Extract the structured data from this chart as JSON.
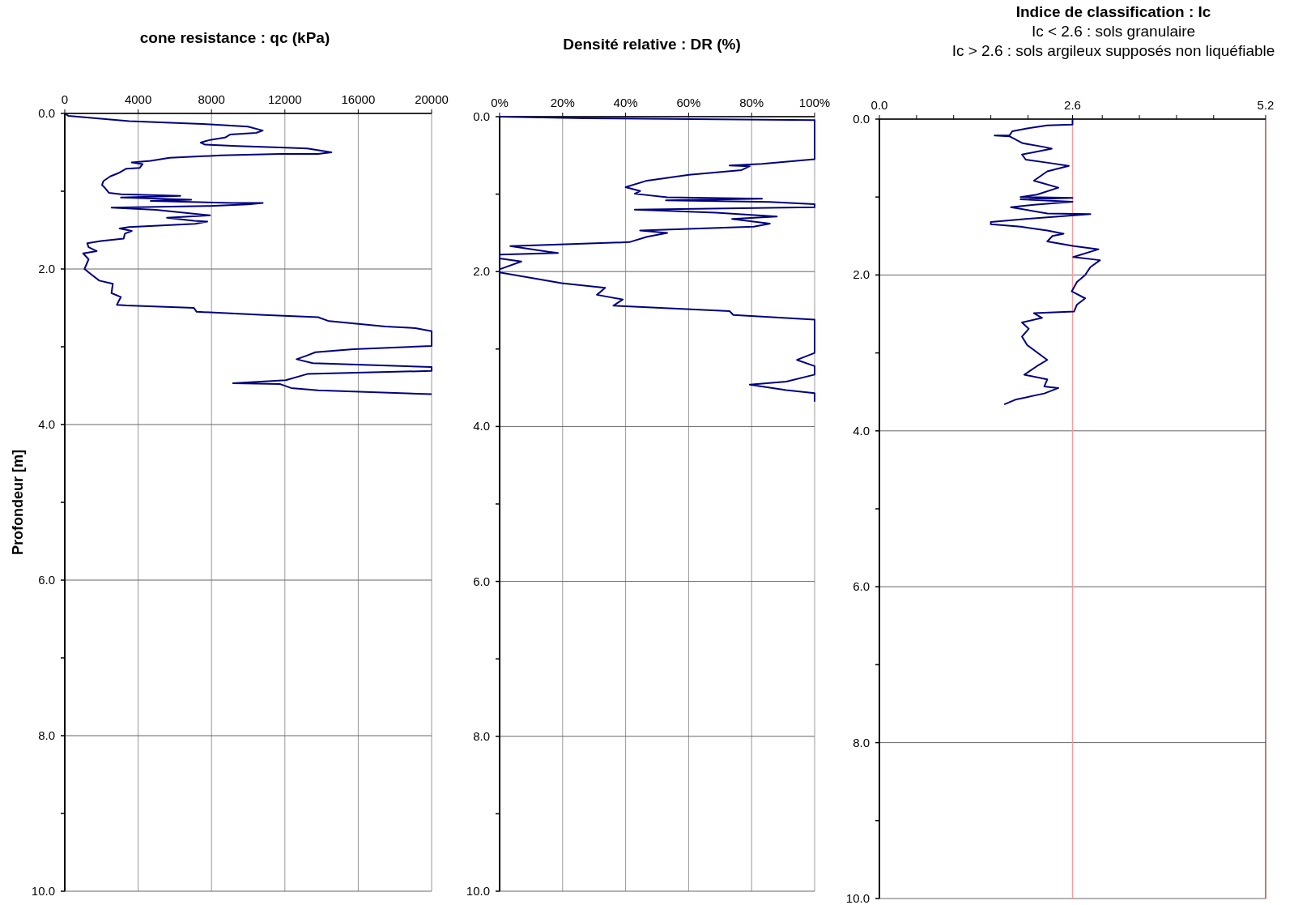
{
  "chart_data": [
    {
      "type": "line",
      "title": "cone resistance : qc (kPa)",
      "ylabel": "Profondeur [m]",
      "xlim": [
        0,
        20000
      ],
      "xticks": [
        0,
        4000,
        8000,
        12000,
        16000,
        20000
      ],
      "ylim": [
        10,
        0
      ],
      "yticks": [
        {
          "value": 0,
          "label": "0.0"
        },
        {
          "value": 1,
          "label": null
        },
        {
          "value": 2,
          "label": "2.0"
        },
        {
          "value": 3,
          "label": null
        },
        {
          "value": 4,
          "label": "4.0"
        },
        {
          "value": 5,
          "label": null
        },
        {
          "value": 6,
          "label": "6.0"
        },
        {
          "value": 7,
          "label": null
        },
        {
          "value": 8,
          "label": "8.0"
        },
        {
          "value": 9,
          "label": null
        },
        {
          "value": 10,
          "label": "10.0"
        }
      ],
      "grid": true,
      "marker": "none",
      "line_style": "solid",
      "series": [
        {
          "color": "#000080",
          "x": [
            0,
            190,
            3505,
            7920,
            9985,
            10795,
            10430,
            9030,
            8735,
            7920,
            7410,
            7630,
            9400,
            12050,
            13225,
            14540,
            13810,
            11750,
            8510,
            5715,
            4685,
            3650,
            4240,
            4090,
            3355,
            2990,
            2475,
            2105,
            2030,
            2180,
            2400,
            3060,
            6300,
            3060,
            6890,
            4685,
            9100,
            10795,
            9985,
            7920,
            2550,
            4980,
            7920,
            5570,
            7040,
            7775,
            7110,
            3505,
            2990,
            3650,
            3280,
            3210,
            1960,
            1225,
            1300,
            1740,
            1000,
            1300,
            1075,
            1445,
            1885,
            2620,
            2545,
            3060,
            2840,
            3355,
            7040,
            7190,
            10870,
            13810,
            14400,
            17490,
            19115,
            20000,
            20000,
            15730,
            13665,
            13225,
            12640,
            13520,
            20000,
            20000,
            13225,
            12050,
            9175,
            11750,
            12340,
            13810,
            20000
          ],
          "values": [
            0,
            0.03,
            0.1,
            0.14,
            0.17,
            0.22,
            0.25,
            0.27,
            0.31,
            0.34,
            0.375,
            0.4,
            0.42,
            0.44,
            0.45,
            0.5,
            0.52,
            0.52,
            0.54,
            0.57,
            0.61,
            0.63,
            0.65,
            0.7,
            0.71,
            0.76,
            0.81,
            0.87,
            0.92,
            0.955,
            1.02,
            1.04,
            1.06,
            1.08,
            1.11,
            1.125,
            1.15,
            1.15,
            1.17,
            1.19,
            1.21,
            1.24,
            1.31,
            1.34,
            1.38,
            1.39,
            1.42,
            1.46,
            1.48,
            1.51,
            1.545,
            1.61,
            1.64,
            1.67,
            1.72,
            1.77,
            1.8,
            1.875,
            2.0,
            2.07,
            2.15,
            2.19,
            2.31,
            2.36,
            2.46,
            2.47,
            2.5,
            2.55,
            2.59,
            2.62,
            2.67,
            2.74,
            2.76,
            2.8,
            2.99,
            3.03,
            3.07,
            3.11,
            3.16,
            3.21,
            3.26,
            3.31,
            3.35,
            3.43,
            3.47,
            3.48,
            3.53,
            3.56,
            3.61
          ]
        }
      ]
    },
    {
      "type": "line",
      "title": "Densité relative : DR (%)",
      "xlim": [
        0,
        100
      ],
      "xticks": [
        {
          "value": 0,
          "label": "0%"
        },
        {
          "value": 20,
          "label": "20%"
        },
        {
          "value": 40,
          "label": "40%"
        },
        {
          "value": 60,
          "label": "60%"
        },
        {
          "value": 80,
          "label": "80%"
        },
        {
          "value": 100,
          "label": "100%"
        }
      ],
      "ylim": [
        10,
        0
      ],
      "yticks": [
        {
          "value": 0,
          "label": "0.0"
        },
        {
          "value": 1,
          "label": null
        },
        {
          "value": 2,
          "label": "2.0"
        },
        {
          "value": 3,
          "label": null
        },
        {
          "value": 4,
          "label": "4.0"
        },
        {
          "value": 5,
          "label": null
        },
        {
          "value": 6,
          "label": "6.0"
        },
        {
          "value": 7,
          "label": null
        },
        {
          "value": 8,
          "label": "8.0"
        },
        {
          "value": 9,
          "label": null
        },
        {
          "value": 10,
          "label": "10.0"
        }
      ],
      "grid": true,
      "marker": "none",
      "line_style": "solid",
      "series": [
        {
          "color": "#000080",
          "x": [
            0,
            27.5,
            100,
            100,
            83.3,
            73,
            79.4,
            76.8,
            60.1,
            46.4,
            40,
            44.6,
            42.9,
            53.2,
            83.3,
            52.8,
            85.8,
            100,
            100,
            42.9,
            68.7,
            88,
            73.8,
            85.8,
            80.7,
            44.6,
            53.2,
            46.8,
            41.2,
            18.9,
            3.4,
            15.5,
            18.5,
            0,
            0,
            6.9,
            0,
            0,
            19.7,
            33.5,
            30.9,
            39.1,
            36.1,
            73,
            74.2,
            100,
            100,
            94.4,
            100,
            100,
            91,
            79.4,
            91,
            100,
            100
          ],
          "values": [
            0,
            0.02,
            0.045,
            0.55,
            0.61,
            0.63,
            0.64,
            0.69,
            0.75,
            0.83,
            0.91,
            0.96,
            0.995,
            1.04,
            1.06,
            1.08,
            1.1,
            1.13,
            1.17,
            1.2,
            1.24,
            1.29,
            1.32,
            1.38,
            1.42,
            1.47,
            1.5,
            1.55,
            1.62,
            1.65,
            1.67,
            1.745,
            1.76,
            1.78,
            1.83,
            1.87,
            1.97,
            2.01,
            2.15,
            2.21,
            2.3,
            2.36,
            2.44,
            2.51,
            2.56,
            2.62,
            3.05,
            3.14,
            3.22,
            3.33,
            3.42,
            3.46,
            3.53,
            3.57,
            3.68
          ]
        }
      ]
    },
    {
      "type": "line",
      "title": "Indice de classification : Ic",
      "subtitle": "Ic < 2.6 : sols granulaire\nIc > 2.6 : sols argileux supposés non liquéfiable",
      "xlim": [
        0,
        5.2
      ],
      "xticks": [
        {
          "value": 0,
          "label": "0.0"
        },
        {
          "value": 0.5,
          "label": null
        },
        {
          "value": 1,
          "label": null
        },
        {
          "value": 1.5,
          "label": null
        },
        {
          "value": 2,
          "label": null
        },
        {
          "value": 2.6,
          "label": "2.6"
        },
        {
          "value": 3,
          "label": null
        },
        {
          "value": 3.5,
          "label": null
        },
        {
          "value": 4,
          "label": null
        },
        {
          "value": 4.5,
          "label": null
        },
        {
          "value": 5.2,
          "label": "5.2"
        }
      ],
      "ylim": [
        10,
        0
      ],
      "yticks": [
        {
          "value": 0,
          "label": "0.0"
        },
        {
          "value": 1,
          "label": null
        },
        {
          "value": 2,
          "label": "2.0"
        },
        {
          "value": 3,
          "label": null
        },
        {
          "value": 4,
          "label": "4.0"
        },
        {
          "value": 5,
          "label": null
        },
        {
          "value": 6,
          "label": "6.0"
        },
        {
          "value": 7,
          "label": null
        },
        {
          "value": 8,
          "label": "8.0"
        },
        {
          "value": 9,
          "label": null
        },
        {
          "value": 10,
          "label": "10.0"
        }
      ],
      "grid": "y",
      "marker": "none",
      "line_style": "solid",
      "ref_lines": [
        {
          "axis": "x",
          "value": 2.6,
          "color": "#ff9999"
        },
        {
          "axis": "x",
          "value": 5.2,
          "color": "#993333"
        }
      ],
      "series": [
        {
          "color": "#000080",
          "x": [
            2.6,
            2.6,
            2.26,
            1.99,
            1.79,
            1.75,
            1.55,
            1.75,
            1.93,
            2.23,
            2.32,
            1.92,
            1.97,
            2.27,
            2.55,
            2.26,
            2.08,
            2.41,
            2.12,
            1.9,
            2.6,
            1.9,
            2.6,
            2.08,
            1.77,
            2.26,
            2.84,
            1.97,
            1.5,
            1.5,
            1.9,
            2.26,
            2.48,
            2.33,
            2.26,
            2.62,
            2.95,
            2.61,
            2.97,
            2.84,
            2.77,
            2.66,
            2.59,
            2.77,
            2.66,
            2.62,
            2.08,
            2.19,
            1.92,
            2.01,
            1.92,
            1.99,
            2.26,
            2.12,
            1.95,
            2.26,
            2.22,
            2.41,
            2.22,
            1.83,
            1.68
          ],
          "values": [
            0,
            0.07,
            0.08,
            0.12,
            0.155,
            0.21,
            0.21,
            0.22,
            0.31,
            0.36,
            0.38,
            0.455,
            0.52,
            0.56,
            0.6,
            0.67,
            0.79,
            0.88,
            0.97,
            1.0,
            1.01,
            1.03,
            1.06,
            1.1,
            1.13,
            1.21,
            1.22,
            1.28,
            1.32,
            1.35,
            1.38,
            1.43,
            1.47,
            1.5,
            1.57,
            1.63,
            1.67,
            1.77,
            1.81,
            1.9,
            2.0,
            2.09,
            2.21,
            2.3,
            2.38,
            2.47,
            2.49,
            2.55,
            2.61,
            2.69,
            2.79,
            2.9,
            3.09,
            3.17,
            3.28,
            3.34,
            3.43,
            3.45,
            3.52,
            3.6,
            3.66
          ]
        }
      ]
    }
  ]
}
